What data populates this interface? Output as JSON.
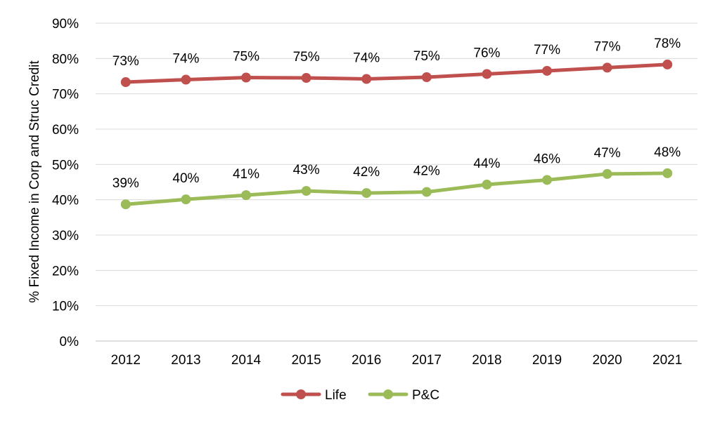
{
  "chart_data": {
    "type": "line",
    "title": "",
    "xlabel": "",
    "ylabel": "% Fixed Income in Corp and Struc Credit",
    "categories": [
      "2012",
      "2013",
      "2014",
      "2015",
      "2016",
      "2017",
      "2018",
      "2019",
      "2020",
      "2021"
    ],
    "ylim": [
      0,
      90
    ],
    "yticks": [
      0,
      10,
      20,
      30,
      40,
      50,
      60,
      70,
      80,
      90
    ],
    "ytick_labels": [
      "0%",
      "10%",
      "20%",
      "30%",
      "40%",
      "50%",
      "60%",
      "70%",
      "80%",
      "90%"
    ],
    "grid": true,
    "legend_position": "bottom",
    "series": [
      {
        "name": "Life",
        "color": "#C0504D",
        "values": [
          73.3,
          74.0,
          74.6,
          74.5,
          74.2,
          74.7,
          75.6,
          76.5,
          77.4,
          78.3
        ],
        "labels": [
          "73%",
          "74%",
          "75%",
          "75%",
          "74%",
          "75%",
          "76%",
          "77%",
          "77%",
          "78%"
        ]
      },
      {
        "name": "P&C",
        "color": "#9BBB59",
        "values": [
          38.7,
          40.1,
          41.3,
          42.5,
          41.9,
          42.2,
          44.3,
          45.6,
          47.3,
          47.5
        ],
        "labels": [
          "39%",
          "40%",
          "41%",
          "43%",
          "42%",
          "42%",
          "44%",
          "46%",
          "47%",
          "48%"
        ]
      }
    ]
  }
}
